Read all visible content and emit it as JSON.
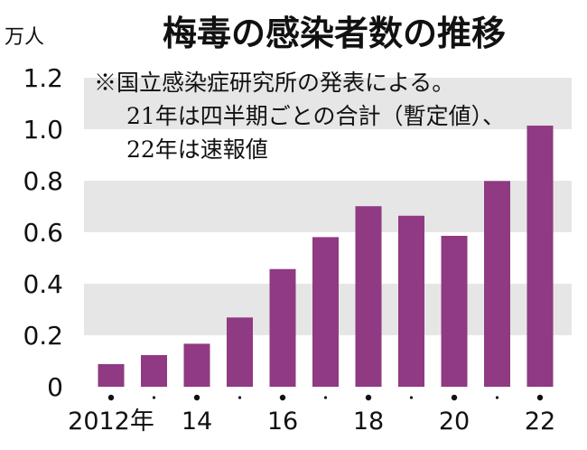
{
  "chart_data": {
    "type": "bar",
    "title": "梅毒の感染者数の推移",
    "unit_label": "万人",
    "notes": [
      "※国立感染症研究所の発表による。",
      "21年は四半期ごとの合計（暫定値）、",
      "22年は速報値"
    ],
    "categories": [
      "2012",
      "2013",
      "2014",
      "2015",
      "2016",
      "2017",
      "2018",
      "2019",
      "2020",
      "2021",
      "2022"
    ],
    "values": [
      0.088,
      0.123,
      0.167,
      0.269,
      0.457,
      0.581,
      0.701,
      0.664,
      0.586,
      0.799,
      1.014
    ],
    "x_tick_labels": [
      "2012年",
      "",
      "14",
      "",
      "16",
      "",
      "18",
      "",
      "20",
      "",
      "22"
    ],
    "y_ticks": [
      "0",
      "0.2",
      "0.4",
      "0.6",
      "0.8",
      "1.0",
      "1.2"
    ],
    "ylim": [
      0,
      1.2
    ],
    "bar_color": "#8f3a82",
    "band_color": "#e6e6e6",
    "grid": "alternating horizontal bands"
  }
}
